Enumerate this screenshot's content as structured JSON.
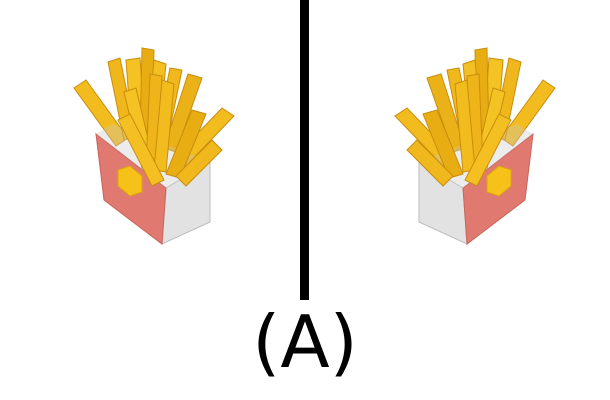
{
  "caption": "(A)",
  "images": [
    {
      "name": "french-fries",
      "orientation": "original"
    },
    {
      "name": "french-fries",
      "orientation": "mirrored"
    }
  ],
  "colors": {
    "box_front": "#e07a70",
    "box_side": "#e4e4e4",
    "fry": "#f2bc1e",
    "fry_shade": "#d89a10",
    "emblem": "#f6c21a",
    "divider": "#000000"
  }
}
